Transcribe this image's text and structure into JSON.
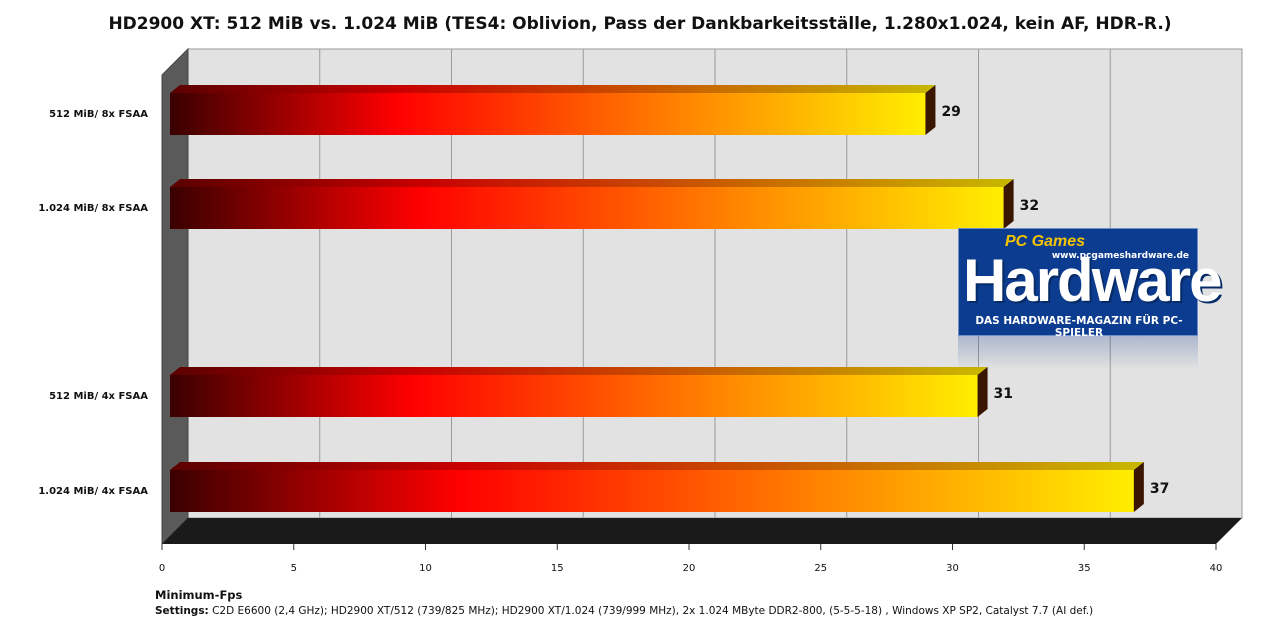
{
  "chart_data": {
    "type": "bar",
    "orientation": "horizontal",
    "title": "HD2900 XT: 512 MiB vs. 1.024 MiB (TES4: Oblivion, Pass der Dankbarkeitsställe, 1.280x1.024,  kein AF, HDR-R.)",
    "categories": [
      "512 MiB/ 8x FSAA",
      "1.024 MiB/ 8x FSAA",
      "512 MiB/ 4x FSAA",
      "1.024 MiB/ 4x FSAA"
    ],
    "values": [
      29,
      32,
      31,
      37
    ],
    "xlabel": "Minimum-Fps",
    "xlim": [
      0,
      40
    ],
    "xticks": [
      "0",
      "5",
      "10",
      "15",
      "20",
      "25",
      "30",
      "35",
      "40"
    ],
    "grid": true,
    "bar_gradient": [
      "#3a0000",
      "#ff0000",
      "#ff8c00",
      "#ffee00"
    ]
  },
  "footer": {
    "settings_label": "Settings:",
    "settings_text": " C2D E6600 (2,4 GHz); HD2900 XT/512 (739/825 MHz); HD2900 XT/1.024 (739/999 MHz), 2x 1.024 MByte DDR2-800, (5-5-5-18) , Windows XP SP2, Catalyst 7.7 (AI def.)"
  },
  "logo": {
    "brand": "Hardware",
    "prefix": "PC Games",
    "url": "www.pcgameshardware.de",
    "tagline": "DAS HARDWARE-MAGAZIN FÜR PC-SPIELER"
  }
}
